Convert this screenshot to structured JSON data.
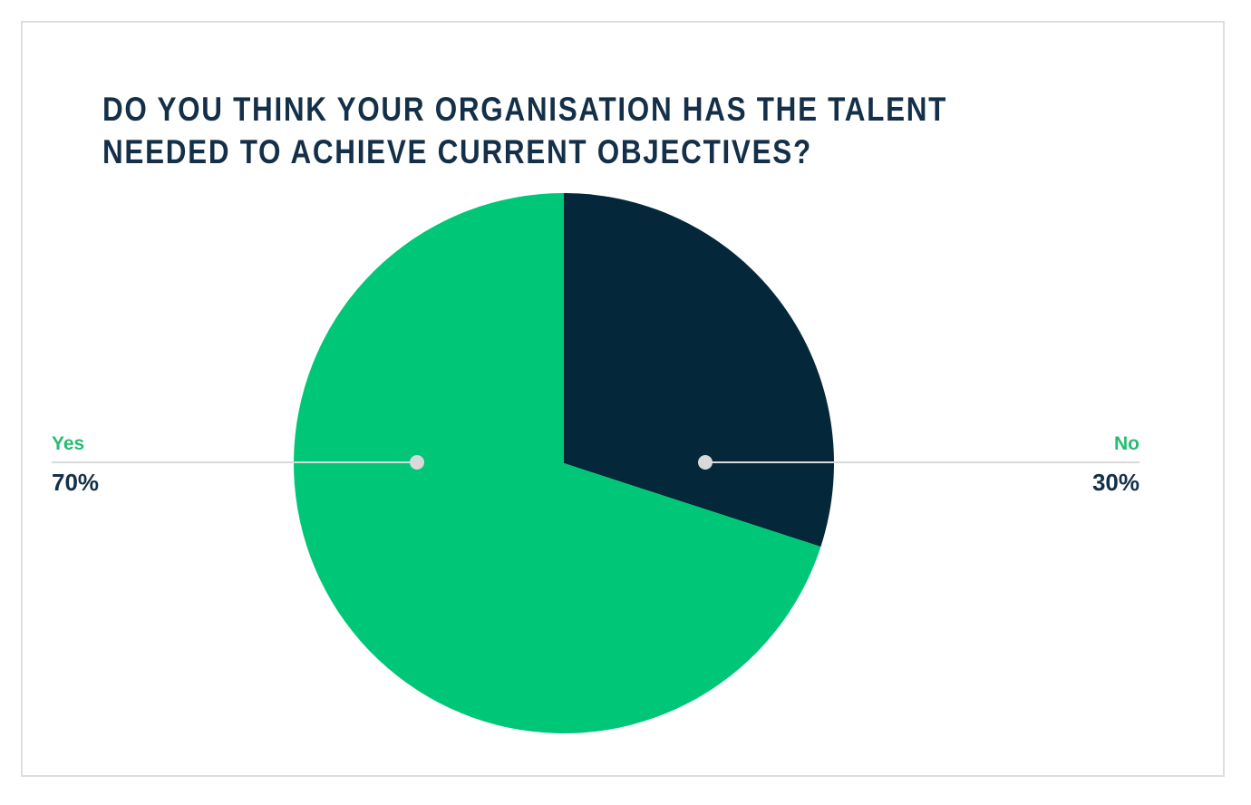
{
  "colors": {
    "pie_green": "#00c778",
    "pie_navy": "#042839",
    "label_green": "#27bc72",
    "navy_text": "#143049",
    "leader_line": "#d9d9d9",
    "leader_dot": "#d9d9d9",
    "panel_border": "#dedede",
    "background": "#ffffff"
  },
  "chart_data": {
    "type": "pie",
    "title": "DO YOU THINK YOUR ORGANISATION HAS THE TALENT NEEDED TO ACHIEVE CURRENT OBJECTIVES?",
    "title_lines": [
      "DO YOU THINK YOUR ORGANISATION HAS THE TALENT",
      "NEEDED TO ACHIEVE CURRENT OBJECTIVES?"
    ],
    "categories": [
      "Yes",
      "No"
    ],
    "values": [
      70,
      30
    ],
    "unit": "%",
    "slice_colors": [
      "#00c778",
      "#042839"
    ],
    "draw": {
      "start_deg": 0,
      "clockwise_order": [
        "No",
        "Yes"
      ],
      "note": "No slice spans 12 o'clock clockwise 108 degrees; Yes fills the remainder"
    },
    "legend_position": "callouts-left-right",
    "callouts": [
      {
        "label": "Yes",
        "value_text": "70%",
        "side": "left"
      },
      {
        "label": "No",
        "value_text": "30%",
        "side": "right"
      }
    ]
  }
}
